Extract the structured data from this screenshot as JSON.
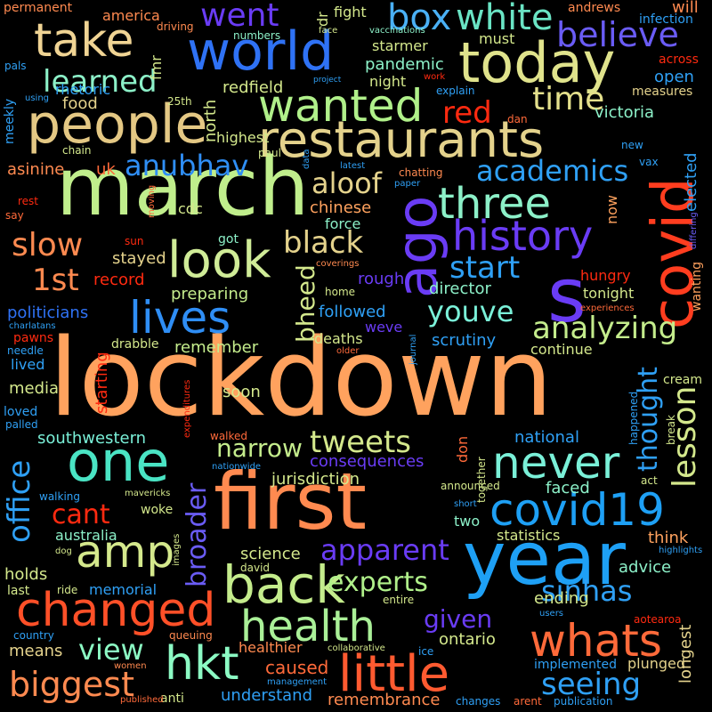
{
  "words": [
    {
      "text": "lockdown",
      "color": "#ffa25e"
    },
    {
      "text": "march",
      "color": "#c0ee8c"
    },
    {
      "text": "first",
      "color": "#ff8a50"
    },
    {
      "text": "year",
      "color": "#1ea0f5"
    },
    {
      "text": "restaurants",
      "color": "#e4d28c"
    },
    {
      "text": "world",
      "color": "#2f72f5"
    },
    {
      "text": "today",
      "color": "#e0e38c"
    },
    {
      "text": "people",
      "color": "#e4c884"
    },
    {
      "text": "covid",
      "color": "#ff3d1f"
    },
    {
      "text": "ago",
      "color": "#6a3cf5"
    },
    {
      "text": "s",
      "color": "#6a3cf5"
    },
    {
      "text": "one",
      "color": "#4ae4c4"
    },
    {
      "text": "changed",
      "color": "#ff5028"
    },
    {
      "text": "wanted",
      "color": "#b0f08a"
    },
    {
      "text": "take",
      "color": "#f0d494"
    },
    {
      "text": "covid19",
      "color": "#1ea0f5"
    },
    {
      "text": "little",
      "color": "#ff5a30"
    },
    {
      "text": "health",
      "color": "#aaf098"
    },
    {
      "text": "whats",
      "color": "#ff6a3a"
    },
    {
      "text": "back",
      "color": "#c4ec8c"
    },
    {
      "text": "hkt",
      "color": "#8cfac4"
    },
    {
      "text": "amp",
      "color": "#d4e88c"
    },
    {
      "text": "never",
      "color": "#7af0d8"
    },
    {
      "text": "look",
      "color": "#d0ec98"
    },
    {
      "text": "lives",
      "color": "#2f8ef5"
    },
    {
      "text": "history",
      "color": "#6a3cf5"
    },
    {
      "text": "three",
      "color": "#8cf0c8"
    },
    {
      "text": "box",
      "color": "#4ab0f5"
    },
    {
      "text": "white",
      "color": "#6ae4c4"
    },
    {
      "text": "went",
      "color": "#6a3cf5"
    },
    {
      "text": "believe",
      "color": "#6a5cf5"
    },
    {
      "text": "anubhav",
      "color": "#2f8ef5"
    },
    {
      "text": "academics",
      "color": "#2fa0f5"
    },
    {
      "text": "learned",
      "color": "#8cf0c8"
    },
    {
      "text": "time",
      "color": "#e4e08c"
    },
    {
      "text": "red",
      "color": "#ff2a10"
    },
    {
      "text": "aloof",
      "color": "#e4d28c"
    },
    {
      "text": "black",
      "color": "#e4d28c"
    },
    {
      "text": "slow",
      "color": "#ff8a50"
    },
    {
      "text": "start",
      "color": "#2fa0f5"
    },
    {
      "text": "1st",
      "color": "#ff8a50"
    },
    {
      "text": "youve",
      "color": "#7af0d8"
    },
    {
      "text": "analyzing",
      "color": "#c4ec8c"
    },
    {
      "text": "lesson",
      "color": "#d4e88c"
    },
    {
      "text": "thought",
      "color": "#2fa0f5"
    },
    {
      "text": "tweets",
      "color": "#d4e88c"
    },
    {
      "text": "narrow",
      "color": "#c4ec8c"
    },
    {
      "text": "office",
      "color": "#2fa0f5"
    },
    {
      "text": "cant",
      "color": "#ff2a10"
    },
    {
      "text": "biggest",
      "color": "#ff8a50"
    },
    {
      "text": "view",
      "color": "#8cfac4"
    },
    {
      "text": "apparent",
      "color": "#6a3cf5"
    },
    {
      "text": "experts",
      "color": "#b0f08a"
    },
    {
      "text": "sinhas",
      "color": "#2fa0f5"
    },
    {
      "text": "seeing",
      "color": "#2fa0f5"
    },
    {
      "text": "given",
      "color": "#6a3cf5"
    },
    {
      "text": "broader",
      "color": "#6a5cf5"
    },
    {
      "text": "bheed",
      "color": "#d4e88c"
    },
    {
      "text": "politicians",
      "color": "#2f72f5"
    },
    {
      "text": "caused",
      "color": "#ff6a3a"
    },
    {
      "text": "pandemic",
      "color": "#8cf0c8"
    },
    {
      "text": "victoria",
      "color": "#8cf0c8"
    },
    {
      "text": "chinese",
      "color": "#ffa25e"
    },
    {
      "text": "director",
      "color": "#8cf0c8"
    },
    {
      "text": "followed",
      "color": "#2fa0f5"
    },
    {
      "text": "scrutiny",
      "color": "#2fa0f5"
    },
    {
      "text": "remember",
      "color": "#c4ec8c"
    },
    {
      "text": "preparing",
      "color": "#c4ec8c"
    },
    {
      "text": "record",
      "color": "#ff2a10"
    },
    {
      "text": "stayed",
      "color": "#e4d28c"
    },
    {
      "text": "southwestern",
      "color": "#7af0d8"
    },
    {
      "text": "consequences",
      "color": "#6a3cf5"
    },
    {
      "text": "jurisdiction",
      "color": "#d4e88c"
    },
    {
      "text": "national",
      "color": "#2fa0f5"
    },
    {
      "text": "faced",
      "color": "#8cf0c8"
    },
    {
      "text": "australia",
      "color": "#8cf0c8"
    },
    {
      "text": "science",
      "color": "#d4e88c"
    },
    {
      "text": "holds",
      "color": "#d4e88c"
    },
    {
      "text": "memorial",
      "color": "#2fa0f5"
    },
    {
      "text": "ending",
      "color": "#d4e88c"
    },
    {
      "text": "ontario",
      "color": "#d4e88c"
    },
    {
      "text": "longest",
      "color": "#e4d28c"
    },
    {
      "text": "statistics",
      "color": "#d4e88c"
    },
    {
      "text": "think",
      "color": "#ffa25e"
    },
    {
      "text": "advice",
      "color": "#8cf0c8"
    },
    {
      "text": "means",
      "color": "#e4d28c"
    },
    {
      "text": "understand",
      "color": "#2fa0f5"
    },
    {
      "text": "remembrance",
      "color": "#ff8a50"
    },
    {
      "text": "healthier",
      "color": "#ff8a50"
    },
    {
      "text": "implemented",
      "color": "#2fa0f5"
    },
    {
      "text": "plunged",
      "color": "#e4d28c"
    },
    {
      "text": "deaths",
      "color": "#d4e88c"
    },
    {
      "text": "weve",
      "color": "#6a3cf5"
    },
    {
      "text": "rough",
      "color": "#6a3cf5"
    },
    {
      "text": "soon",
      "color": "#d4e88c"
    },
    {
      "text": "media",
      "color": "#d4e88c"
    },
    {
      "text": "lived",
      "color": "#2fa0f5"
    },
    {
      "text": "starting",
      "color": "#ff2a10"
    },
    {
      "text": "asinine",
      "color": "#ff8a50"
    },
    {
      "text": "uk",
      "color": "#ff6a3a"
    },
    {
      "text": "cdc",
      "color": "#d4e88c"
    },
    {
      "text": "got",
      "color": "#8cf0c8"
    },
    {
      "text": "now",
      "color": "#ffa25e"
    },
    {
      "text": "force",
      "color": "#8cf0c8"
    },
    {
      "text": "hungry",
      "color": "#ff2a10"
    },
    {
      "text": "tonight",
      "color": "#d4e88c"
    },
    {
      "text": "continue",
      "color": "#d4e88c"
    },
    {
      "text": "cream",
      "color": "#d4e88c"
    },
    {
      "text": "wanting",
      "color": "#ffa25e"
    },
    {
      "text": "elected",
      "color": "#2fa0f5"
    },
    {
      "text": "open",
      "color": "#2fa0f5"
    },
    {
      "text": "measures",
      "color": "#e4d28c"
    },
    {
      "text": "will",
      "color": "#ff8a50"
    },
    {
      "text": "andrews",
      "color": "#ff8a50"
    },
    {
      "text": "infection",
      "color": "#2fa0f5"
    },
    {
      "text": "across",
      "color": "#ff2a10"
    },
    {
      "text": "highest",
      "color": "#d4e88c"
    },
    {
      "text": "redfield",
      "color": "#d4e88c"
    },
    {
      "text": "north",
      "color": "#d4e88c"
    },
    {
      "text": "fmr",
      "color": "#d4e88c"
    },
    {
      "text": "food",
      "color": "#e4d28c"
    },
    {
      "text": "rhetoric",
      "color": "#2fa0f5"
    },
    {
      "text": "america",
      "color": "#ff8a50"
    },
    {
      "text": "fight",
      "color": "#d4e88c"
    },
    {
      "text": "dr",
      "color": "#d4e88c"
    },
    {
      "text": "must",
      "color": "#d4e88c"
    },
    {
      "text": "starmer",
      "color": "#d4e88c"
    },
    {
      "text": "night",
      "color": "#d4e88c"
    },
    {
      "text": "explain",
      "color": "#2fa0f5"
    },
    {
      "text": "dan",
      "color": "#ff6a3a"
    },
    {
      "text": "paul",
      "color": "#d4e88c"
    },
    {
      "text": "chain",
      "color": "#d4e88c"
    },
    {
      "text": "meekly",
      "color": "#2fa0f5"
    },
    {
      "text": "pals",
      "color": "#2fa0f5"
    },
    {
      "text": "permanent",
      "color": "#ff8a50"
    },
    {
      "text": "driving",
      "color": "#ff8a50"
    },
    {
      "text": "numbers",
      "color": "#8cf0c8"
    },
    {
      "text": "face",
      "color": "#d4e88c"
    },
    {
      "text": "vaccinations",
      "color": "#8cf0c8"
    },
    {
      "text": "project",
      "color": "#2fa0f5"
    },
    {
      "text": "work",
      "color": "#ff2a10"
    },
    {
      "text": "using",
      "color": "#2fa0f5"
    },
    {
      "text": "25th",
      "color": "#d4e88c"
    },
    {
      "text": "new",
      "color": "#2fa0f5"
    },
    {
      "text": "vax",
      "color": "#2fa0f5"
    },
    {
      "text": "latest",
      "color": "#2fa0f5"
    },
    {
      "text": "chatting",
      "color": "#ff8a50"
    },
    {
      "text": "paper",
      "color": "#2fa0f5"
    },
    {
      "text": "data",
      "color": "#2fa0f5"
    },
    {
      "text": "rest",
      "color": "#ff2a10"
    },
    {
      "text": "say",
      "color": "#ff6a3a"
    },
    {
      "text": "sun",
      "color": "#ff2a10"
    },
    {
      "text": "moving",
      "color": "#ff6a3a"
    },
    {
      "text": "coverings",
      "color": "#ff8a50"
    },
    {
      "text": "home",
      "color": "#d4e88c"
    },
    {
      "text": "experiences",
      "color": "#ff6a3a"
    },
    {
      "text": "differing",
      "color": "#6a5cf5"
    },
    {
      "text": "charlatans",
      "color": "#2fa0f5"
    },
    {
      "text": "pawns",
      "color": "#ff2a10"
    },
    {
      "text": "needle",
      "color": "#2fa0f5"
    },
    {
      "text": "drabble",
      "color": "#d4e88c"
    },
    {
      "text": "older",
      "color": "#ff6a3a"
    },
    {
      "text": "journal",
      "color": "#2fa0f5"
    },
    {
      "text": "arent",
      "color": "#ff6a3a"
    },
    {
      "text": "break",
      "color": "#d4e88c"
    },
    {
      "text": "happened",
      "color": "#2fa0f5"
    },
    {
      "text": "loved",
      "color": "#2fa0f5"
    },
    {
      "text": "palled",
      "color": "#2fa0f5"
    },
    {
      "text": "expenditures",
      "color": "#ff2a10"
    },
    {
      "text": "walked",
      "color": "#ff6a3a"
    },
    {
      "text": "don",
      "color": "#ff6a3a"
    },
    {
      "text": "together",
      "color": "#d4e88c"
    },
    {
      "text": "nationwide",
      "color": "#2fa0f5"
    },
    {
      "text": "walking",
      "color": "#2fa0f5"
    },
    {
      "text": "mavericks",
      "color": "#d4e88c"
    },
    {
      "text": "woke",
      "color": "#d4e88c"
    },
    {
      "text": "announced",
      "color": "#d4e88c"
    },
    {
      "text": "short",
      "color": "#2fa0f5"
    },
    {
      "text": "two",
      "color": "#8cf0c8"
    },
    {
      "text": "act",
      "color": "#d4e88c"
    },
    {
      "text": "images",
      "color": "#d4e88c"
    },
    {
      "text": "dog",
      "color": "#d4e88c"
    },
    {
      "text": "david",
      "color": "#d4e88c"
    },
    {
      "text": "highlights",
      "color": "#2fa0f5"
    },
    {
      "text": "last",
      "color": "#d4e88c"
    },
    {
      "text": "ride",
      "color": "#d4e88c"
    },
    {
      "text": "entire",
      "color": "#d4e88c"
    },
    {
      "text": "users",
      "color": "#2fa0f5"
    },
    {
      "text": "aotearoa",
      "color": "#ff2a10"
    },
    {
      "text": "publication",
      "color": "#2fa0f5"
    },
    {
      "text": "country",
      "color": "#2fa0f5"
    },
    {
      "text": "queuing",
      "color": "#ff8a50"
    },
    {
      "text": "collaborative",
      "color": "#d4e88c"
    },
    {
      "text": "ice",
      "color": "#2fa0f5"
    },
    {
      "text": "women",
      "color": "#ff8a50"
    },
    {
      "text": "management",
      "color": "#2fa0f5"
    },
    {
      "text": "anti",
      "color": "#d4e88c"
    },
    {
      "text": "published",
      "color": "#ff6a3a"
    },
    {
      "text": "changes",
      "color": "#2fa0f5"
    }
  ]
}
